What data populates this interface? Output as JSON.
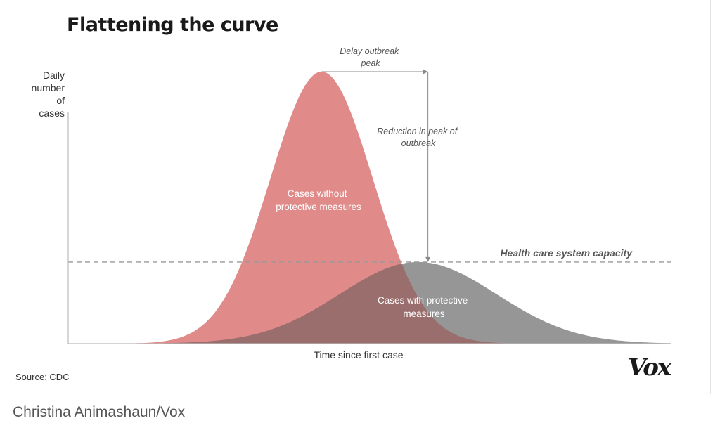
{
  "chart_data": {
    "type": "area",
    "title": "Flattening the curve",
    "xlabel": "Time since first case",
    "ylabel": "Daily number of cases",
    "ylabel_lines": [
      "Daily",
      "number of",
      "cases"
    ],
    "series": [
      {
        "name": "Cases without protective measures",
        "label_lines": [
          "Cases without",
          "protective measures"
        ],
        "color": "#e08a8a",
        "peak_time": 0.42,
        "peak_value": 1.0,
        "spread": 0.085
      },
      {
        "name": "Cases with protective measures",
        "label_lines": [
          "Cases with protective",
          "measures"
        ],
        "color": "#7f7f7f",
        "peak_time": 0.58,
        "peak_value": 0.3,
        "spread": 0.13
      }
    ],
    "overlap_color": "#9b6e6e",
    "reference_line": {
      "label": "Health care system capacity",
      "value": 0.3
    },
    "annotations": [
      {
        "id": "delay",
        "lines": [
          "Delay outbreak",
          "peak"
        ]
      },
      {
        "id": "reduction",
        "lines": [
          "Reduction in peak of",
          "outbreak"
        ]
      }
    ],
    "xlim": [
      0,
      1
    ],
    "ylim": [
      0,
      1
    ]
  },
  "source": "Source: CDC",
  "brand": "Vox",
  "credit": "Christina Animashaun/Vox"
}
